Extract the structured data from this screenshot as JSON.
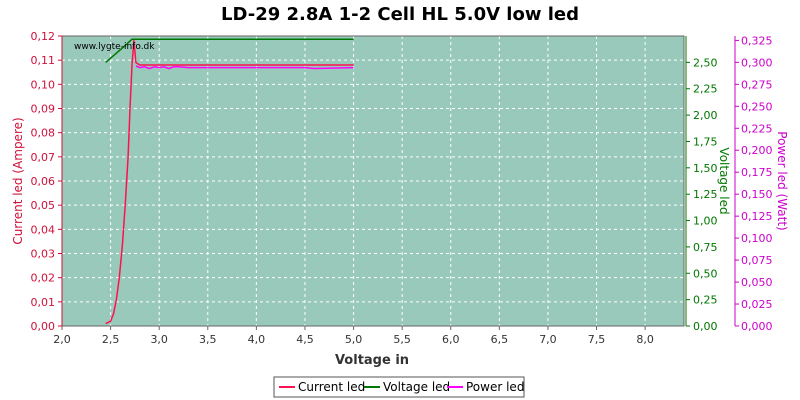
{
  "chart_data": {
    "type": "line",
    "title": "LD-29 2.8A 1-2 Cell HL 5.0V low led",
    "watermark": "www.lygte-info.dk",
    "xlabel": "Voltage in",
    "xlim": [
      2.0,
      8.4
    ],
    "x_ticks": [
      "2,0",
      "2,5",
      "3,0",
      "3,5",
      "4,0",
      "4,5",
      "5,0",
      "5,5",
      "6,0",
      "6,5",
      "7,0",
      "7,5",
      "8,0"
    ],
    "y_left": {
      "label": "Current led (Ampere)",
      "lim": [
        0,
        0.12
      ],
      "ticks": [
        "0,00",
        "0,01",
        "0,02",
        "0,03",
        "0,04",
        "0,05",
        "0,06",
        "0,07",
        "0,08",
        "0,09",
        "0,10",
        "0,11",
        "0,12"
      ],
      "color": "#d0103a"
    },
    "y_right1": {
      "label": "Voltage led",
      "lim": [
        0,
        2.75
      ],
      "ticks": [
        "0,00",
        "0,25",
        "0,50",
        "0,75",
        "1,00",
        "1,25",
        "1,50",
        "1,75",
        "2,00",
        "2,25",
        "2,50"
      ],
      "color": "#007700"
    },
    "y_right2": {
      "label": "Power led (Watt)",
      "lim": [
        0,
        0.33
      ],
      "ticks": [
        "0,000",
        "0,025",
        "0,050",
        "0,075",
        "0,100",
        "0,125",
        "0,150",
        "0,175",
        "0,200",
        "0,225",
        "0,250",
        "0,275",
        "0,300",
        "0,325"
      ],
      "color": "#cc00cc"
    },
    "grid": true,
    "legend_position": "bottom-center",
    "colors": {
      "plot_bg": "#99c9bb",
      "grid": "#ffffff",
      "current": "#ff1050",
      "voltage": "#007700",
      "power": "#ff00ff"
    },
    "series": [
      {
        "name": "Current led",
        "axis": "left",
        "x": [
          2.45,
          2.5,
          2.53,
          2.56,
          2.59,
          2.62,
          2.65,
          2.68,
          2.7,
          2.72,
          2.74,
          2.76,
          2.8,
          2.9,
          3.0,
          3.1,
          3.2,
          3.5,
          4.0,
          4.5,
          5.0
        ],
        "y": [
          0.001,
          0.002,
          0.005,
          0.011,
          0.02,
          0.033,
          0.05,
          0.07,
          0.09,
          0.108,
          0.118,
          0.109,
          0.108,
          0.108,
          0.108,
          0.108,
          0.108,
          0.108,
          0.108,
          0.108,
          0.108
        ]
      },
      {
        "name": "Voltage led",
        "axis": "right1",
        "x": [
          2.45,
          2.55,
          2.65,
          2.72,
          2.75,
          3.0,
          3.5,
          4.0,
          4.5,
          5.0
        ],
        "y": [
          2.5,
          2.58,
          2.66,
          2.72,
          2.72,
          2.72,
          2.72,
          2.72,
          2.72,
          2.72
        ]
      },
      {
        "name": "Power led",
        "axis": "right2",
        "x": [
          2.76,
          2.8,
          2.85,
          2.9,
          2.95,
          3.0,
          3.05,
          3.1,
          3.15,
          3.2,
          3.3,
          3.5,
          4.0,
          4.5,
          4.6,
          5.0
        ],
        "y": [
          0.296,
          0.294,
          0.295,
          0.293,
          0.295,
          0.294,
          0.295,
          0.293,
          0.295,
          0.295,
          0.294,
          0.294,
          0.294,
          0.294,
          0.293,
          0.294
        ]
      }
    ]
  }
}
